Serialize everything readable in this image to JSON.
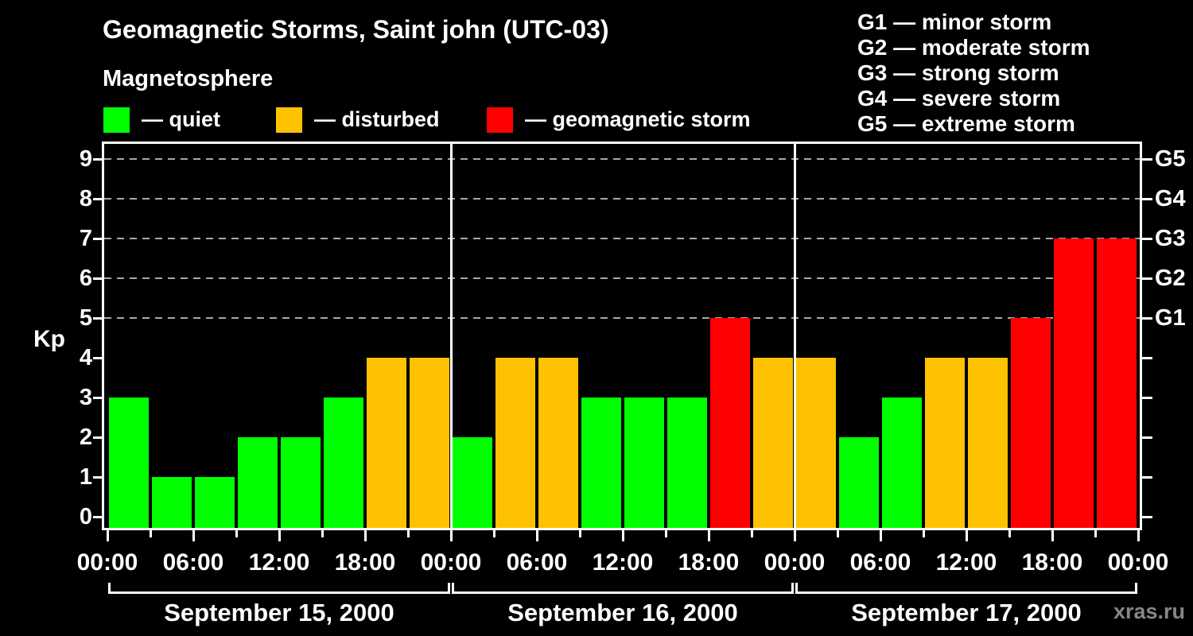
{
  "title": "Geomagnetic Storms, Saint john (UTC-03)",
  "subtitle": "Magnetosphere",
  "legend": {
    "items": [
      {
        "key": "quiet",
        "label": "— quiet",
        "color": "#00ff00"
      },
      {
        "key": "disturbed",
        "label": "— disturbed",
        "color": "#ffc200"
      },
      {
        "key": "storm",
        "label": "— geomagnetic storm",
        "color": "#ff0000"
      }
    ]
  },
  "g_scale_legend": [
    "G1 — minor storm",
    "G2 — moderate storm",
    "G3 — strong storm",
    "G4 — severe storm",
    "G5 — extreme storm"
  ],
  "watermark": "xras.ru",
  "chart_data": {
    "type": "bar",
    "title": "Geomagnetic Storms, Saint john (UTC-03)",
    "ylabel": "Kp",
    "ylim": [
      0,
      9
    ],
    "y_ticks": [
      0,
      1,
      2,
      3,
      4,
      5,
      6,
      7,
      8,
      9
    ],
    "gridlines_at": [
      5,
      6,
      7,
      8,
      9
    ],
    "grid_style": "dashed",
    "right_axis_labels": [
      {
        "value": 5,
        "label": "G1"
      },
      {
        "value": 6,
        "label": "G2"
      },
      {
        "value": 7,
        "label": "G3"
      },
      {
        "value": 8,
        "label": "G4"
      },
      {
        "value": 9,
        "label": "G5"
      }
    ],
    "x_tick_labels": [
      "00:00",
      "06:00",
      "12:00",
      "18:00",
      "00:00",
      "06:00",
      "12:00",
      "18:00",
      "00:00",
      "06:00",
      "12:00",
      "18:00",
      "00:00"
    ],
    "interval_hours": 3,
    "days": [
      {
        "date": "September 15, 2000",
        "values": [
          3,
          1,
          1,
          2,
          2,
          3,
          4,
          4
        ]
      },
      {
        "date": "September 16, 2000",
        "values": [
          2,
          4,
          4,
          3,
          3,
          3,
          5,
          4
        ]
      },
      {
        "date": "September 17, 2000",
        "values": [
          4,
          2,
          3,
          4,
          4,
          5,
          7,
          7
        ]
      }
    ],
    "colors": {
      "quiet": "#00ff00",
      "disturbed": "#ffc200",
      "storm": "#ff0000"
    },
    "color_rules": {
      "quiet_max": 3,
      "disturbed_max": 4,
      "storm_min": 5
    },
    "axis_color": "#ffffff",
    "grid_color": "#a8a8a8",
    "background": "#000000",
    "legend_position": "top"
  }
}
